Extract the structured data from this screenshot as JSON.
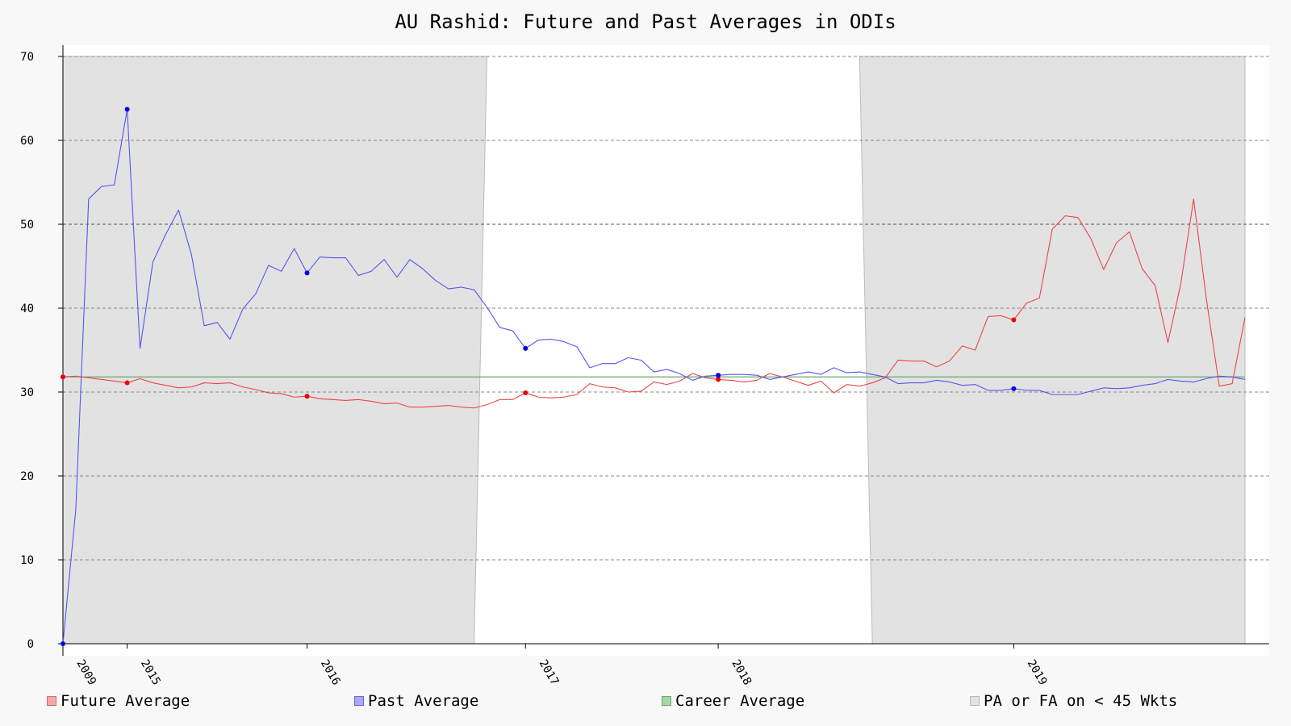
{
  "chart_data": {
    "type": "line",
    "title": "AU Rashid: Future and Past Averages in ODIs",
    "xlabel": "",
    "ylabel": "",
    "ylim": [
      0,
      70
    ],
    "yticks": [
      0,
      10,
      20,
      30,
      40,
      50,
      60,
      70
    ],
    "xtick_labels": [
      "2009",
      "2015",
      "2016",
      "2017",
      "2018",
      "2019"
    ],
    "xtick_index": [
      0,
      5,
      19,
      36,
      51,
      74
    ],
    "n_points": 93,
    "grid": true,
    "legend_placement": "bottom",
    "colors": {
      "future": "#ee4444",
      "past": "#5555ee",
      "career": "#66aa66",
      "shade": "#e2e2e2"
    },
    "career_average": 31.8,
    "low_wkt_shading": [
      {
        "top_start": 0,
        "top_end": 33,
        "bottom_start": 0,
        "bottom_end": 32
      },
      {
        "top_start": 62,
        "top_end": 92,
        "bottom_start": 63,
        "bottom_end": 92
      }
    ],
    "marker_indices": [
      0,
      5,
      19,
      36,
      51,
      74
    ],
    "series": [
      {
        "name": "Future Average",
        "key": "future",
        "values": [
          31.8,
          31.9,
          31.7,
          31.5,
          31.3,
          31.1,
          31.6,
          31.1,
          30.8,
          30.5,
          30.6,
          31.1,
          31.0,
          31.1,
          30.6,
          30.3,
          29.9,
          29.8,
          29.4,
          29.5,
          29.2,
          29.1,
          29.0,
          29.1,
          28.9,
          28.6,
          28.7,
          28.2,
          28.2,
          28.3,
          28.4,
          28.2,
          28.1,
          28.5,
          29.1,
          29.1,
          29.9,
          29.4,
          29.3,
          29.4,
          29.7,
          31.0,
          30.6,
          30.5,
          30.0,
          30.1,
          31.2,
          30.9,
          31.3,
          32.2,
          31.7,
          31.5,
          31.4,
          31.2,
          31.4,
          32.2,
          31.8,
          31.3,
          30.8,
          31.3,
          29.9,
          30.9,
          30.7,
          31.1,
          31.7,
          33.8,
          33.7,
          33.7,
          33.0,
          33.7,
          35.5,
          35.0,
          39.0,
          39.1,
          38.6,
          40.6,
          41.2,
          49.4,
          51.0,
          50.8,
          48.3,
          44.6,
          47.8,
          49.1,
          44.7,
          42.7,
          35.9,
          42.9,
          53.0,
          41.0,
          30.7,
          31.0,
          38.9
        ]
      },
      {
        "name": "Past Average",
        "key": "past",
        "values": [
          0.0,
          16.0,
          53.0,
          54.5,
          54.7,
          63.7,
          35.2,
          45.5,
          48.8,
          51.7,
          46.4,
          37.9,
          38.3,
          36.3,
          39.9,
          41.7,
          45.1,
          44.4,
          47.1,
          44.2,
          46.1,
          46.0,
          46.0,
          43.9,
          44.4,
          45.8,
          43.7,
          45.8,
          44.7,
          43.3,
          42.3,
          42.5,
          42.2,
          40.1,
          37.7,
          37.3,
          35.2,
          36.2,
          36.3,
          36.0,
          35.4,
          32.9,
          33.4,
          33.4,
          34.1,
          33.8,
          32.4,
          32.7,
          32.2,
          31.4,
          31.9,
          32.0,
          32.1,
          32.1,
          32.0,
          31.5,
          31.8,
          32.1,
          32.4,
          32.1,
          32.9,
          32.3,
          32.4,
          32.1,
          31.8,
          31.0,
          31.1,
          31.1,
          31.4,
          31.2,
          30.8,
          30.9,
          30.2,
          30.2,
          30.4,
          30.2,
          30.2,
          29.7,
          29.7,
          29.7,
          30.1,
          30.5,
          30.4,
          30.5,
          30.8,
          31.0,
          31.5,
          31.3,
          31.2,
          31.6,
          31.9,
          31.8,
          31.5
        ]
      }
    ],
    "legend": [
      {
        "key": "future",
        "label": "Future Average"
      },
      {
        "key": "past",
        "label": "Past Average"
      },
      {
        "key": "career",
        "label": "Career Average"
      },
      {
        "key": "shade",
        "label": "PA or FA on < 45 Wkts"
      }
    ]
  }
}
